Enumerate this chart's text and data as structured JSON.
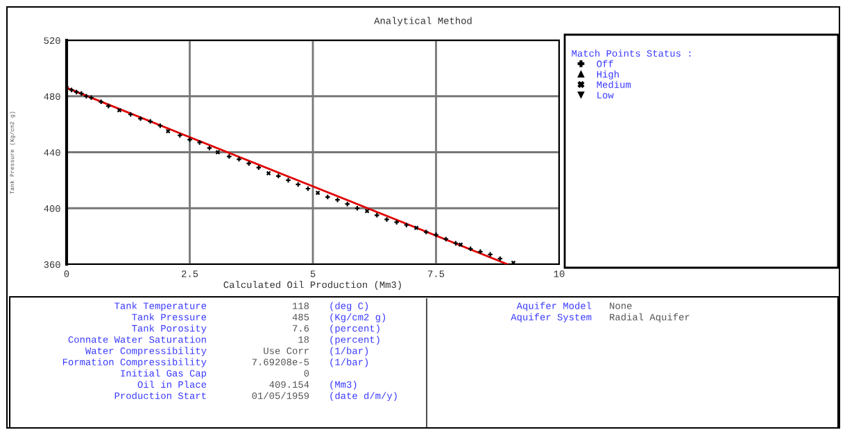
{
  "chart_data": [
    {
      "type": "scatter",
      "title": "Analytical Method",
      "xlabel": "Calculated Oil Production (Mm3)",
      "ylabel": "Tank Pressure (Kg/cm2 g)",
      "legend_title": "Match Points Status :",
      "legend": "right",
      "xlim": [
        0,
        10
      ],
      "xticks": [
        0,
        2.5,
        5,
        7.5,
        10
      ],
      "ylim": [
        360,
        520
      ],
      "yticks": [
        360,
        400,
        440,
        480,
        520
      ],
      "grid": true,
      "series": [
        {
          "name": "Off",
          "color": "#000000",
          "marker": "cross",
          "x": [
            0.1,
            0.2,
            0.3,
            0.4,
            0.5,
            0.7,
            0.85,
            1.3,
            1.5,
            1.7,
            1.9,
            2.3,
            2.5,
            2.7,
            2.9,
            3.3,
            3.5,
            3.7,
            3.9,
            4.3,
            4.5,
            4.7,
            4.9,
            5.3,
            5.5,
            5.7,
            5.9,
            6.3,
            6.5,
            6.7,
            6.9,
            7.3,
            7.5,
            7.7,
            7.9,
            8.2,
            8.4,
            8.6,
            8.8
          ],
          "values": [
            484.5,
            483,
            482,
            480,
            479,
            476,
            473,
            467,
            464,
            462,
            459,
            452,
            449,
            447,
            443,
            437,
            435,
            432,
            429,
            423,
            420,
            417,
            414,
            408,
            406,
            403,
            400,
            395,
            392,
            390,
            388,
            383,
            381,
            378,
            375,
            371,
            369,
            367,
            364
          ]
        },
        {
          "name": "High",
          "color": "#000000",
          "marker": "triangle"
        },
        {
          "name": "Medium",
          "color": "#000000",
          "x": [
            0,
            1.07,
            2.06,
            3.07,
            4.1,
            5.1,
            6.1,
            7.1,
            8.0,
            9.07
          ],
          "values": [
            486,
            470,
            455,
            440,
            425,
            411,
            398,
            386,
            374,
            361
          ]
        },
        {
          "name": "Low",
          "color": "#000000",
          "marker": "diamond"
        },
        {
          "type": "line",
          "color": "#e00000",
          "marker": "none",
          "x": [
            0,
            8.95
          ],
          "values": [
            486,
            360
          ]
        }
      ]
    },
    {
      "type": "other",
      "annotations": [
        "Tank Temperature",
        "118",
        "(deg C)",
        "Tank Pressure",
        "485",
        "(Kg/cm2 g)",
        "Tank Porosity",
        "7.6",
        "(percent)",
        "Connate Water Saturation",
        "18",
        "(percent)",
        "Water Compressibility",
        "Use Corr",
        "(1/bar)",
        "Formation Compressibility",
        "7.69208e-5",
        "(1/bar)",
        "Initial Gas Cap",
        "0",
        null,
        "Oil in Place",
        "409.154",
        "(Mm3)",
        "Production Start",
        "01/05/1959",
        "(date d/m/y)"
      ]
    },
    {
      "type": "other",
      "annotations": [
        "Aquifer Model",
        "None",
        "Aquifer System",
        "Radial Aquifer"
      ]
    }
  ]
}
